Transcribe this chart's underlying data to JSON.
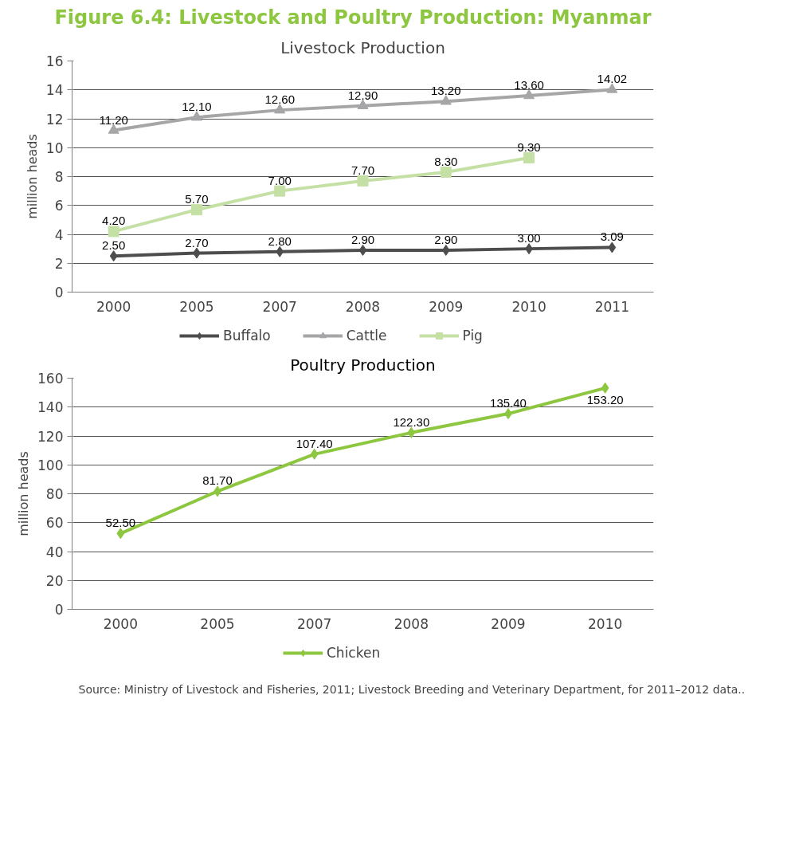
{
  "chart_data": [
    {
      "type": "line",
      "title": "Figure 6.4:    Livestock and Poultry Production: Myanmar",
      "subtitle": "Livestock Production",
      "ylabel": "million heads",
      "categories": [
        "2000",
        "2005",
        "2007",
        "2008",
        "2009",
        "2010",
        "2011"
      ],
      "series": [
        {
          "name": "Buffalo",
          "color": "#4d4d4d",
          "marker": "diamond",
          "values": [
            2.5,
            2.7,
            2.8,
            2.9,
            2.9,
            3.0,
            3.09
          ],
          "value_labels": [
            "2.50",
            "2.70",
            "2.80",
            "2.90",
            "2.90",
            "3.00",
            "3.09"
          ]
        },
        {
          "name": "Cattle",
          "color": "#a6a6a8",
          "marker": "triangle",
          "values": [
            11.2,
            12.1,
            12.6,
            12.9,
            13.2,
            13.6,
            14.02
          ],
          "value_labels": [
            "11.20",
            "12.10",
            "12.60",
            "12.90",
            "13.20",
            "13.60",
            "14.02"
          ]
        },
        {
          "name": "Pig",
          "color": "#c5e0a5",
          "marker": "square",
          "values": [
            4.2,
            5.7,
            7.0,
            7.7,
            8.3,
            9.3,
            null
          ],
          "value_labels": [
            "4.20",
            "5.70",
            "7.00",
            "7.70",
            "8.30",
            "9.30",
            null
          ]
        }
      ],
      "ylim": [
        0,
        16
      ],
      "yticks": [
        0,
        2,
        4,
        6,
        8,
        10,
        12,
        14,
        16
      ],
      "grid": "y",
      "legend": "bottom",
      "line_style": "solid"
    },
    {
      "type": "line",
      "title": "Poultry Production",
      "ylabel": "million heads",
      "categories": [
        "2000",
        "2005",
        "2007",
        "2008",
        "2009",
        "2010"
      ],
      "series": [
        {
          "name": "Chicken",
          "color": "#8dc63f",
          "marker": "diamond",
          "values": [
            52.5,
            81.7,
            107.4,
            122.3,
            135.4,
            153.2
          ],
          "value_labels": [
            "52.50",
            "81.70",
            "107.40",
            "122.30",
            "135.40",
            "153.20"
          ]
        }
      ],
      "ylim": [
        0,
        160
      ],
      "yticks": [
        0,
        20,
        40,
        60,
        80,
        100,
        120,
        140,
        160
      ],
      "grid": "y",
      "legend": "bottom",
      "line_style": "solid",
      "annotations": [
        "Source: Ministry of Livestock and Fisheries, 2011; Livestock Breeding and Veterinary Department, for 2011–2012 data.."
      ]
    }
  ]
}
